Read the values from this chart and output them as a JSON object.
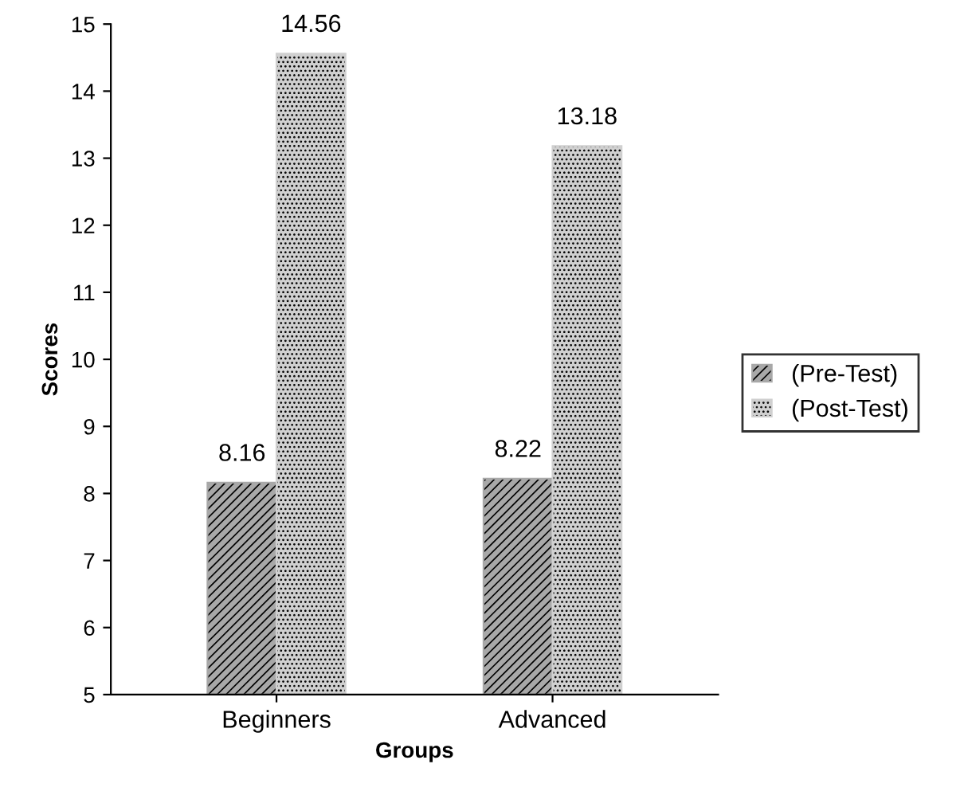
{
  "chart_data": {
    "type": "bar",
    "xlabel": "Groups",
    "ylabel": "Scores",
    "categories": [
      "Beginners",
      "Advanced"
    ],
    "series": [
      {
        "name": "(Pre-Test)",
        "color": "#a8a8a8",
        "values": [
          8.16,
          8.22
        ]
      },
      {
        "name": "(Post-Test)",
        "color": "#d0d0d0",
        "values": [
          14.56,
          13.18
        ]
      }
    ],
    "ylim": [
      5,
      15
    ],
    "yticks": [
      5,
      6,
      7,
      8,
      9,
      10,
      11,
      12,
      13,
      14,
      15
    ],
    "data_labels": true,
    "legend": "right",
    "grid": false
  }
}
